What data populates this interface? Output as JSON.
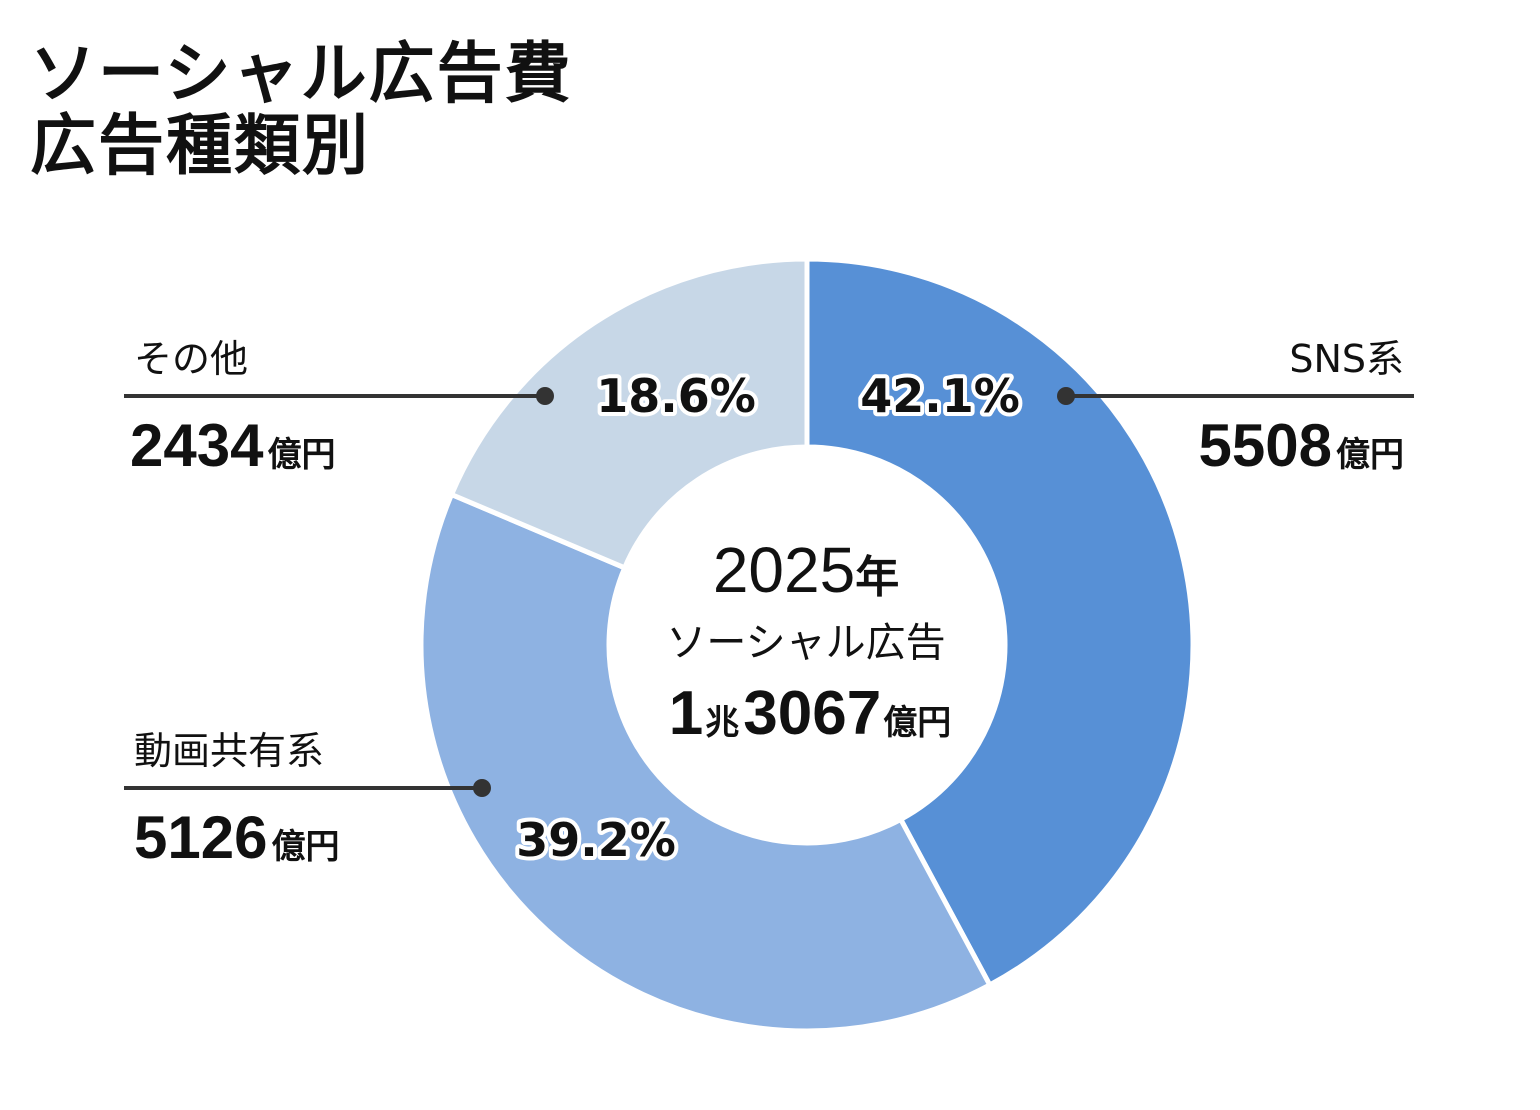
{
  "title": {
    "line1": "ソーシャル広告費",
    "line2": "広告種類別"
  },
  "center": {
    "year": "2025",
    "year_unit": "年",
    "name": "ソーシャル広告",
    "total_part1": "1",
    "total_unit1": "兆",
    "total_part2": "3067",
    "total_unit2": "億円"
  },
  "chart_data": {
    "type": "pie",
    "title": "ソーシャル広告費 広告種類別",
    "categories": [
      "SNS系",
      "動画共有系",
      "その他"
    ],
    "values": [
      5508,
      5126,
      2434
    ],
    "percent_labels": [
      "42.1%",
      "39.2%",
      "18.6%"
    ],
    "value_labels": [
      "5508",
      "5126",
      "2434"
    ],
    "unit": "億円",
    "colors": [
      "#5790d6",
      "#8eb2e2",
      "#c7d7e7"
    ],
    "total_label": "1兆3067億円"
  },
  "colors": {
    "leader": "#333333",
    "separator": "#ffffff"
  }
}
